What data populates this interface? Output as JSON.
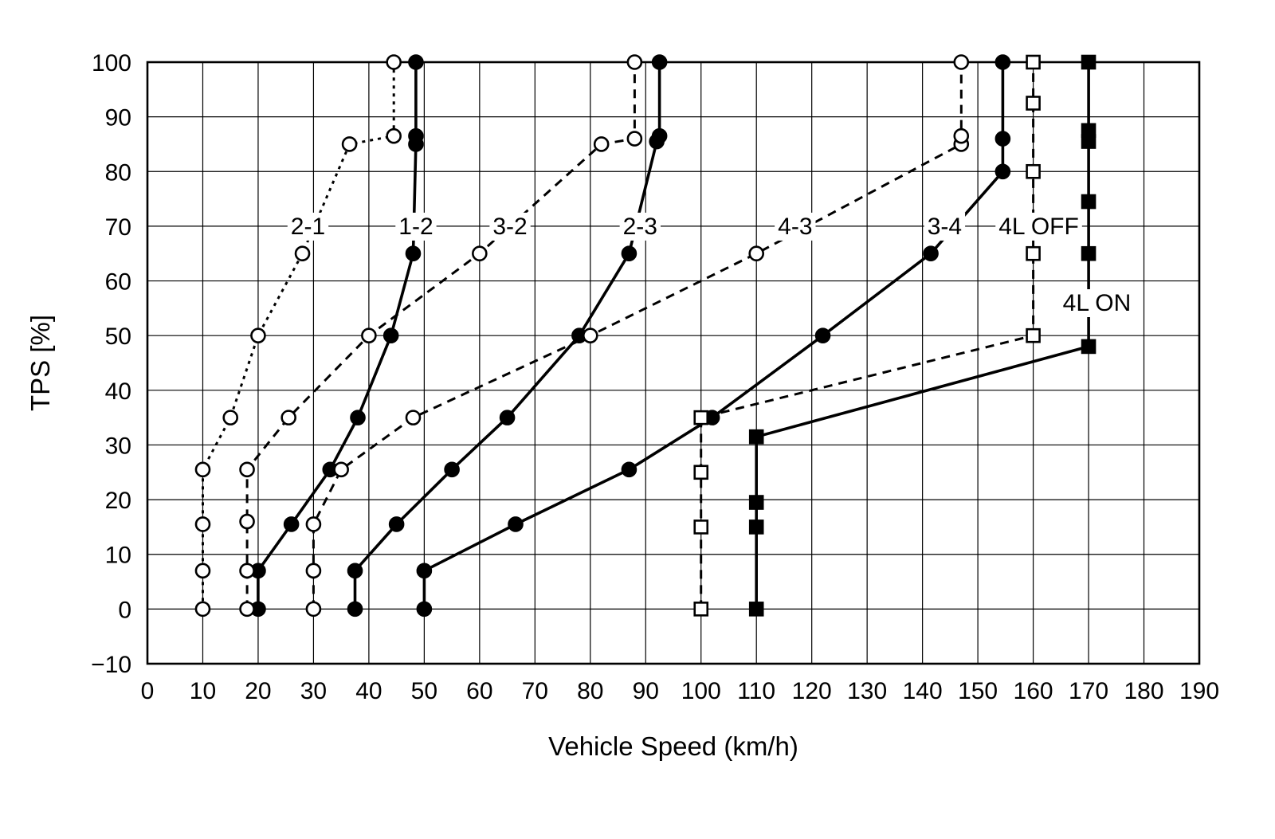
{
  "chart_data": {
    "type": "line",
    "title": "",
    "xlabel": "Vehicle Speed (km/h)",
    "ylabel": "TPS [%]",
    "xlim": [
      0,
      190
    ],
    "ylim": [
      -10,
      100
    ],
    "xticks": [
      0,
      10,
      20,
      30,
      40,
      50,
      60,
      70,
      80,
      90,
      100,
      110,
      120,
      130,
      140,
      150,
      160,
      170,
      180,
      190
    ],
    "yticks": [
      -10,
      0,
      10,
      20,
      30,
      40,
      50,
      60,
      70,
      80,
      90,
      100
    ],
    "grid": true,
    "colors": {
      "foreground": "#000000",
      "background": "#ffffff"
    },
    "series": [
      {
        "name": "2-1",
        "line": "dotted",
        "marker": "circle",
        "fill": "open",
        "label": {
          "text": "2-1",
          "x": 29,
          "y": 70
        },
        "points": [
          [
            10,
            0
          ],
          [
            10,
            7
          ],
          [
            10,
            15.5
          ],
          [
            10,
            25.5
          ],
          [
            15,
            35
          ],
          [
            20,
            50
          ],
          [
            28,
            65
          ],
          [
            36.5,
            85
          ],
          [
            44.5,
            86.5
          ],
          [
            44.5,
            100
          ]
        ]
      },
      {
        "name": "1-2",
        "line": "solid",
        "marker": "circle",
        "fill": "filled",
        "label": {
          "text": "1-2",
          "x": 48.5,
          "y": 70
        },
        "points": [
          [
            20,
            0
          ],
          [
            20,
            7
          ],
          [
            26,
            15.5
          ],
          [
            33,
            25.5
          ],
          [
            38,
            35
          ],
          [
            44,
            50
          ],
          [
            48,
            65
          ],
          [
            48.5,
            85
          ],
          [
            48.5,
            86.5
          ],
          [
            48.5,
            100
          ]
        ]
      },
      {
        "name": "3-2",
        "line": "dashed",
        "marker": "circle",
        "fill": "open",
        "label": {
          "text": "3-2",
          "x": 65.5,
          "y": 70
        },
        "points": [
          [
            18,
            0
          ],
          [
            18,
            7
          ],
          [
            18,
            16
          ],
          [
            18,
            25.5
          ],
          [
            25.5,
            35
          ],
          [
            40,
            50
          ],
          [
            60,
            65
          ],
          [
            82,
            85
          ],
          [
            88,
            86
          ],
          [
            88,
            100
          ]
        ]
      },
      {
        "name": "2-3",
        "line": "solid",
        "marker": "circle",
        "fill": "filled",
        "label": {
          "text": "2-3",
          "x": 89,
          "y": 70
        },
        "points": [
          [
            37.5,
            0
          ],
          [
            37.5,
            7
          ],
          [
            45,
            15.5
          ],
          [
            55,
            25.5
          ],
          [
            65,
            35
          ],
          [
            78,
            50
          ],
          [
            87,
            65
          ],
          [
            92,
            85.5
          ],
          [
            92.5,
            86.5
          ],
          [
            92.5,
            100
          ]
        ]
      },
      {
        "name": "4-3",
        "line": "dashed",
        "marker": "circle",
        "fill": "open",
        "label": {
          "text": "4-3",
          "x": 117,
          "y": 70
        },
        "points": [
          [
            30,
            0
          ],
          [
            30,
            7
          ],
          [
            30,
            15.5
          ],
          [
            35,
            25.5
          ],
          [
            48,
            35
          ],
          [
            80,
            50
          ],
          [
            110,
            65
          ],
          [
            147,
            85
          ],
          [
            147,
            86.5
          ],
          [
            147,
            100
          ]
        ]
      },
      {
        "name": "3-4",
        "line": "solid",
        "marker": "circle",
        "fill": "filled",
        "label": {
          "text": "3-4",
          "x": 144,
          "y": 70
        },
        "points": [
          [
            50,
            0
          ],
          [
            50,
            7
          ],
          [
            66.5,
            15.5
          ],
          [
            87,
            25.5
          ],
          [
            102,
            35
          ],
          [
            122,
            50
          ],
          [
            141.5,
            65
          ],
          [
            154.5,
            80
          ],
          [
            154.5,
            86
          ],
          [
            154.5,
            100
          ]
        ]
      },
      {
        "name": "4L OFF",
        "line": "dashed",
        "marker": "square",
        "fill": "open",
        "label": {
          "text": "4L OFF",
          "x": 161,
          "y": 70
        },
        "points": [
          [
            100,
            0
          ],
          [
            100,
            15
          ],
          [
            100,
            25
          ],
          [
            100,
            35
          ],
          [
            160,
            50
          ],
          [
            160,
            65
          ],
          [
            160,
            80
          ],
          [
            160,
            92.5
          ],
          [
            160,
            100
          ]
        ]
      },
      {
        "name": "4L ON",
        "line": "solid",
        "marker": "square",
        "fill": "filled",
        "label": {
          "text": "4L ON",
          "x": 171.5,
          "y": 56
        },
        "points": [
          [
            110,
            0
          ],
          [
            110,
            15
          ],
          [
            110,
            19.5
          ],
          [
            110,
            31.5
          ],
          [
            170,
            48
          ],
          [
            170,
            65
          ],
          [
            170,
            74.5
          ],
          [
            170,
            85.5
          ],
          [
            170,
            87.5
          ],
          [
            170,
            100
          ]
        ]
      }
    ]
  }
}
